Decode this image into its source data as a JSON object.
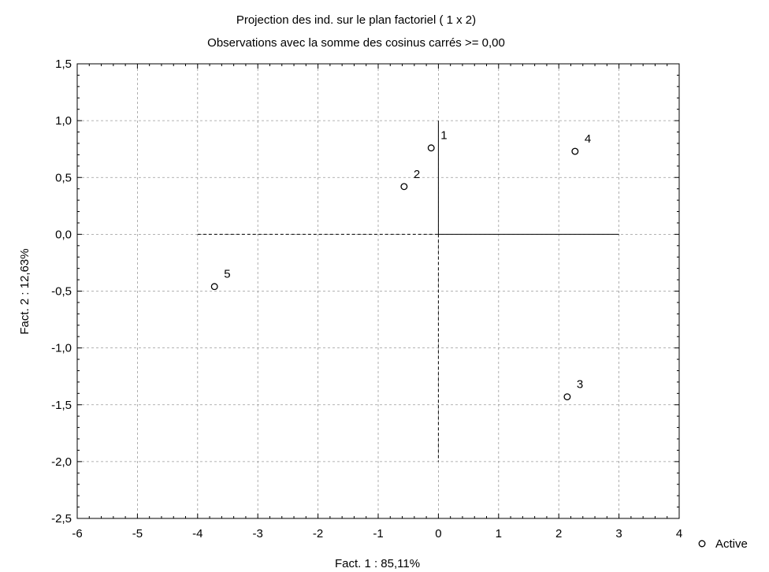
{
  "chart_data": {
    "type": "scatter",
    "title": "Projection des ind. sur le plan factoriel ( 1 x   2)",
    "subtitle": "Observations avec la somme des cosinus carrés >=  0,00",
    "xlabel": "Fact. 1 : 85,11%",
    "ylabel": "Fact. 2 : 12,63%",
    "xlim": [
      -6,
      4
    ],
    "ylim": [
      -2.5,
      1.5
    ],
    "xticks": [
      "-6",
      "-5",
      "-4",
      "-3",
      "-2",
      "-1",
      "0",
      "1",
      "2",
      "3",
      "4"
    ],
    "yticks": [
      "1,5",
      "1,0",
      "0,5",
      "0,0",
      "-0,5",
      "-1,0",
      "-1,5",
      "-2,0",
      "-2,5"
    ],
    "grid": true,
    "legend": {
      "label": "Active",
      "placement": "bottom-right"
    },
    "points": [
      {
        "label": "1",
        "x": -0.12,
        "y": 0.76
      },
      {
        "label": "2",
        "x": -0.57,
        "y": 0.42
      },
      {
        "label": "3",
        "x": 2.14,
        "y": -1.43
      },
      {
        "label": "4",
        "x": 2.27,
        "y": 0.73
      },
      {
        "label": "5",
        "x": -3.72,
        "y": -0.46
      }
    ]
  }
}
